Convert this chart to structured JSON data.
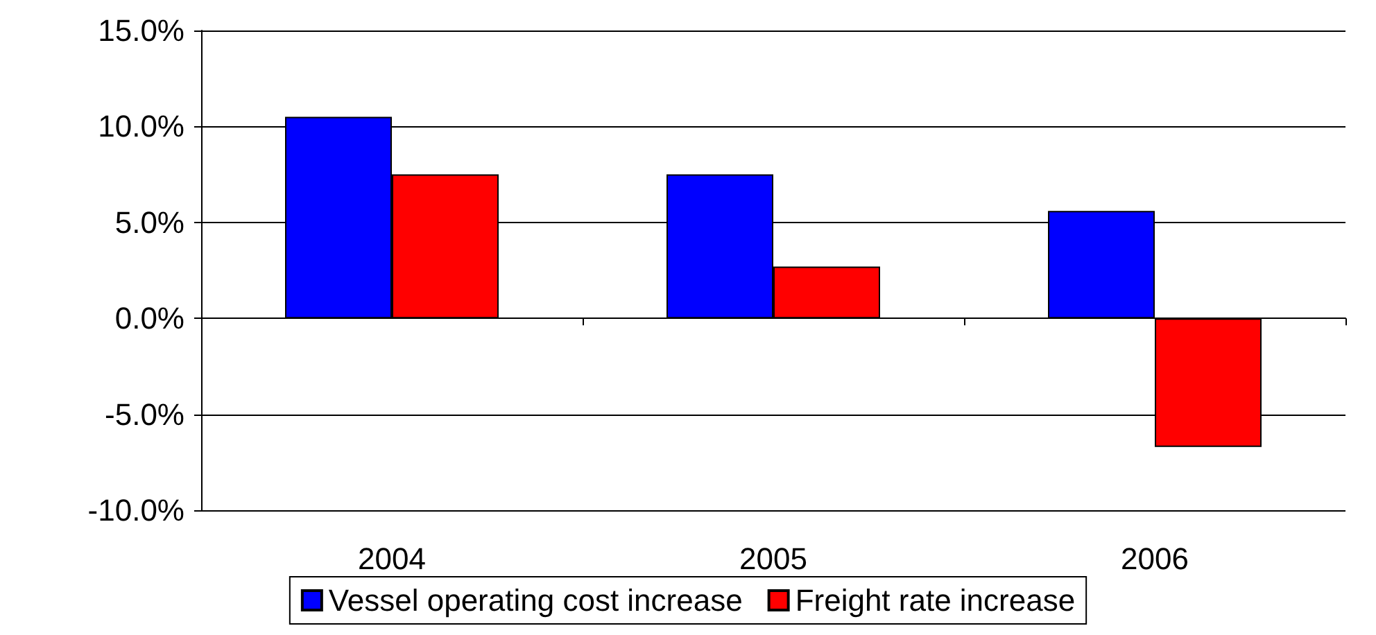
{
  "chart_data": {
    "type": "bar",
    "categories": [
      "2004",
      "2005",
      "2006"
    ],
    "series": [
      {
        "name": "Vessel operating cost increase",
        "color": "#0000ff",
        "values": [
          10.5,
          7.5,
          5.6
        ]
      },
      {
        "name": "Freight rate increase",
        "color": "#ff0000",
        "values": [
          7.5,
          2.7,
          -6.7
        ]
      }
    ],
    "ylim": [
      -10,
      15
    ],
    "yticks": [
      {
        "value": -10,
        "label": "-10.0%"
      },
      {
        "value": -5,
        "label": "-5.0%"
      },
      {
        "value": 0,
        "label": "0.0%"
      },
      {
        "value": 5,
        "label": "5.0%"
      },
      {
        "value": 10,
        "label": "10.0%"
      },
      {
        "value": 15,
        "label": "15.0%"
      }
    ],
    "grid": "y",
    "legend": "bottom"
  }
}
